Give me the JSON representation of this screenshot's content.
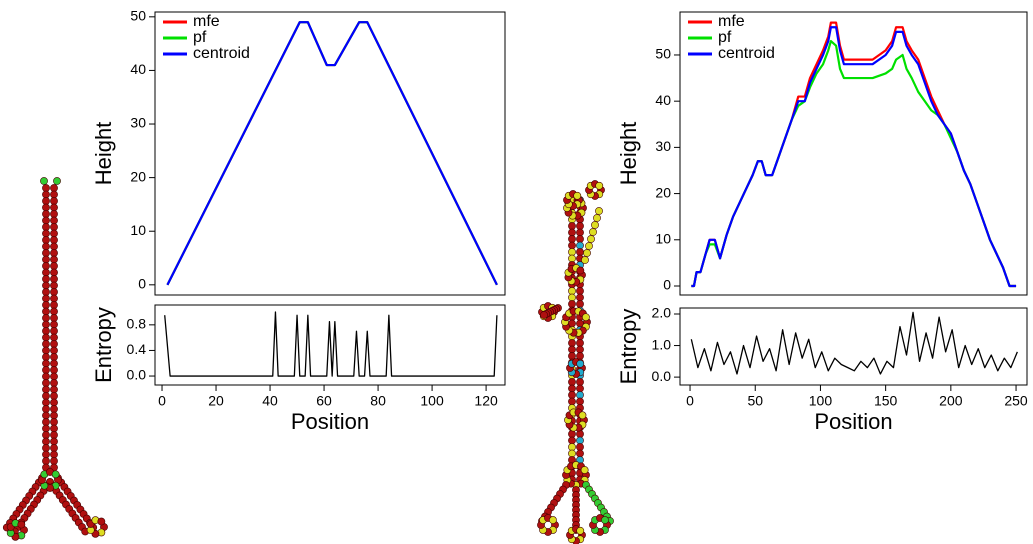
{
  "chart_data": [
    {
      "type": "line",
      "ylabel": "Height",
      "legend": "upper left",
      "x": [
        2,
        51,
        54,
        61,
        64,
        73,
        76,
        124
      ],
      "series": [
        {
          "name": "mfe",
          "color": "#ff0000",
          "values": [
            0,
            49,
            49,
            41,
            41,
            49,
            49,
            0
          ]
        },
        {
          "name": "pf",
          "color": "#00e000",
          "values": [
            0,
            49,
            49,
            41,
            41,
            49,
            49,
            0
          ]
        },
        {
          "name": "centroid",
          "color": "#0000ff",
          "values": [
            0,
            49,
            49,
            41,
            41,
            49,
            49,
            0
          ]
        }
      ],
      "xlim": [
        -2.6,
        127
      ],
      "ylim": [
        -1.9,
        50.9
      ],
      "yticks": [
        0,
        10,
        20,
        30,
        40,
        50
      ]
    },
    {
      "type": "line",
      "ylabel": "Entropy",
      "xlabel": "Position",
      "color": "#000000",
      "x": [
        1,
        3,
        41,
        42,
        43,
        49,
        50,
        51,
        53,
        54,
        55,
        61,
        62,
        63,
        64,
        65,
        71,
        72,
        73,
        75,
        76,
        77,
        83,
        84,
        85,
        123,
        124
      ],
      "values": [
        0.95,
        0,
        0,
        1.0,
        0,
        0,
        0.95,
        0,
        0,
        0.95,
        0,
        0,
        0.85,
        0,
        0.85,
        0,
        0,
        0.7,
        0,
        0,
        0.7,
        0,
        0,
        0.95,
        0,
        0,
        0.95
      ],
      "xlim": [
        -2.6,
        127
      ],
      "ylim": [
        -0.14,
        1.11
      ],
      "yticks": [
        {
          "value": 0,
          "label": "0.0"
        },
        {
          "value": 0.4,
          "label": "0.4"
        },
        {
          "value": 0.8,
          "label": "0.8"
        }
      ],
      "xticks": [
        0,
        20,
        40,
        60,
        80,
        100,
        120
      ]
    },
    {
      "type": "line",
      "ylabel": "Height",
      "legend": "upper left",
      "x": [
        1,
        3,
        5,
        8,
        12,
        15,
        19,
        23,
        28,
        33,
        38,
        43,
        48,
        52,
        55,
        58,
        63,
        68,
        73,
        78,
        83,
        88,
        92,
        97,
        102,
        106,
        108,
        112,
        115,
        118,
        140,
        150,
        155,
        158,
        163,
        166,
        170,
        175,
        180,
        185,
        190,
        195,
        200,
        205,
        210,
        215,
        220,
        225,
        230,
        235,
        240,
        245,
        250
      ],
      "series": [
        {
          "name": "mfe",
          "color": "#ff0000",
          "values": [
            0,
            0,
            3,
            3,
            7,
            10,
            10,
            6,
            11,
            15,
            18,
            21,
            24,
            27,
            27,
            24,
            24,
            28,
            32,
            36,
            41,
            41,
            45,
            48,
            51,
            54,
            57,
            57,
            52,
            49,
            49,
            51,
            53,
            56,
            56,
            53,
            51,
            49,
            45,
            41,
            38,
            35,
            33,
            29,
            25,
            22,
            18,
            14,
            10,
            7,
            4,
            0,
            0
          ]
        },
        {
          "name": "pf",
          "color": "#00e000",
          "values": [
            0,
            0,
            3,
            3,
            7,
            9,
            9,
            6,
            11,
            15,
            18,
            21,
            24,
            27,
            27,
            24,
            24,
            28,
            32,
            36,
            39,
            40,
            43,
            46,
            48,
            51,
            53,
            52,
            47,
            45,
            45,
            46,
            47,
            49,
            50,
            47,
            45,
            42,
            40,
            38,
            37,
            35,
            32,
            29,
            25,
            22,
            18,
            14,
            10,
            7,
            4,
            0,
            0
          ]
        },
        {
          "name": "centroid",
          "color": "#0000ff",
          "values": [
            0,
            0,
            3,
            3,
            7,
            10,
            10,
            6,
            11,
            15,
            18,
            21,
            24,
            27,
            27,
            24,
            24,
            28,
            32,
            36,
            40,
            40,
            44,
            47,
            50,
            53,
            56,
            56,
            51,
            48,
            48,
            50,
            52,
            55,
            55,
            52,
            50,
            48,
            44,
            40,
            37,
            35,
            33,
            29,
            25,
            22,
            18,
            14,
            10,
            7,
            4,
            0,
            0
          ]
        }
      ],
      "xlim": [
        -7.7,
        258.4
      ],
      "ylim": [
        -1.95,
        59.3
      ],
      "yticks": [
        0,
        10,
        20,
        30,
        40,
        50
      ]
    },
    {
      "type": "line",
      "ylabel": "Entropy",
      "xlabel": "Position",
      "color": "#000000",
      "x": [
        1,
        6,
        11,
        16,
        21,
        26,
        31,
        36,
        41,
        46,
        51,
        56,
        61,
        66,
        71,
        76,
        81,
        86,
        91,
        96,
        101,
        106,
        111,
        116,
        121,
        126,
        131,
        136,
        141,
        146,
        151,
        156,
        161,
        166,
        171,
        176,
        181,
        186,
        191,
        196,
        201,
        206,
        211,
        216,
        221,
        226,
        231,
        236,
        241,
        246,
        251
      ],
      "values": [
        1.2,
        0.3,
        0.9,
        0.2,
        1.1,
        0.4,
        0.8,
        0.1,
        1.0,
        0.3,
        1.3,
        0.5,
        0.9,
        0.2,
        1.5,
        0.4,
        1.4,
        0.6,
        1.2,
        0.3,
        0.8,
        0.2,
        0.6,
        0.4,
        0.3,
        0.2,
        0.5,
        0.3,
        0.6,
        0.1,
        0.5,
        0.3,
        1.6,
        0.7,
        2.05,
        0.5,
        1.4,
        0.6,
        1.9,
        0.8,
        1.5,
        0.3,
        1.0,
        0.4,
        0.9,
        0.3,
        0.7,
        0.2,
        0.6,
        0.3,
        0.8
      ],
      "xlim": [
        -7.7,
        258.4
      ],
      "ylim": [
        -0.25,
        2.19
      ],
      "yticks": [
        {
          "value": 0,
          "label": "0.0"
        },
        {
          "value": 1,
          "label": "1.0"
        },
        {
          "value": 2,
          "label": "2.0"
        }
      ],
      "xticks": [
        0,
        50,
        100,
        150,
        200,
        250
      ]
    }
  ]
}
